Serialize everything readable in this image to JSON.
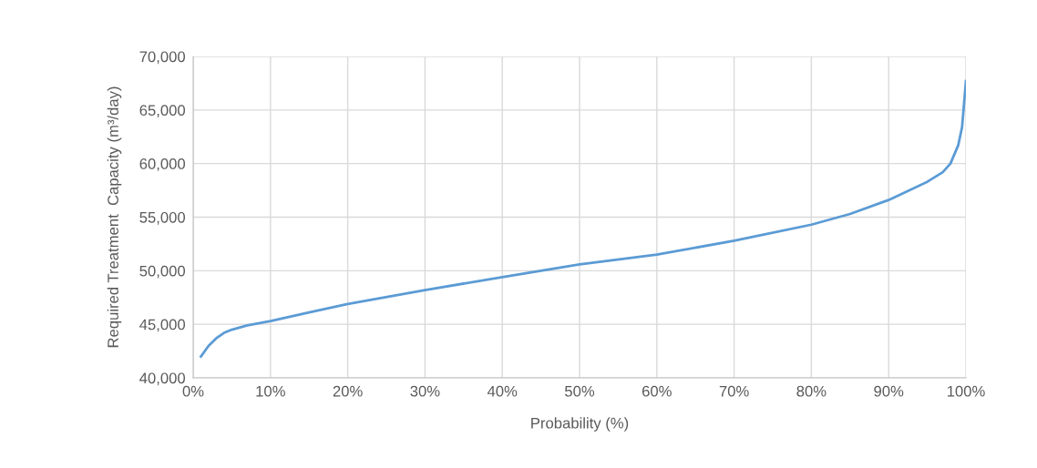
{
  "chart_data": {
    "type": "line",
    "xlabel": "Probability (%)",
    "ylabel": "Required Treatment  Capacity (m³/day)",
    "x": [
      1,
      2,
      3,
      4,
      5,
      7,
      10,
      15,
      20,
      30,
      40,
      50,
      60,
      70,
      80,
      85,
      90,
      95,
      97,
      98,
      99,
      99.5,
      100
    ],
    "series": [
      {
        "color": "#5b9bd5",
        "values": [
          42000,
          43000,
          43700,
          44200,
          44500,
          44900,
          45300,
          46100,
          46900,
          48200,
          49400,
          50600,
          51500,
          52800,
          54300,
          55300,
          56600,
          58300,
          59200,
          60000,
          61700,
          63400,
          67700
        ]
      }
    ],
    "xlim": [
      0,
      100
    ],
    "xticks": [
      {
        "value": 0,
        "label": "0%"
      },
      {
        "value": 10,
        "label": "10%"
      },
      {
        "value": 20,
        "label": "20%"
      },
      {
        "value": 30,
        "label": "30%"
      },
      {
        "value": 40,
        "label": "40%"
      },
      {
        "value": 50,
        "label": "50%"
      },
      {
        "value": 60,
        "label": "60%"
      },
      {
        "value": 70,
        "label": "70%"
      },
      {
        "value": 80,
        "label": "80%"
      },
      {
        "value": 90,
        "label": "90%"
      },
      {
        "value": 100,
        "label": "100%"
      }
    ],
    "ylim": [
      40000,
      70000
    ],
    "yticks": [
      {
        "value": 40000,
        "label": "40,000"
      },
      {
        "value": 45000,
        "label": "45,000"
      },
      {
        "value": 50000,
        "label": "50,000"
      },
      {
        "value": 55000,
        "label": "55,000"
      },
      {
        "value": 60000,
        "label": "60,000"
      },
      {
        "value": 65000,
        "label": "65,000"
      },
      {
        "value": 70000,
        "label": "70,000"
      }
    ],
    "grid": true,
    "marker": "none",
    "line_style": "solid"
  }
}
